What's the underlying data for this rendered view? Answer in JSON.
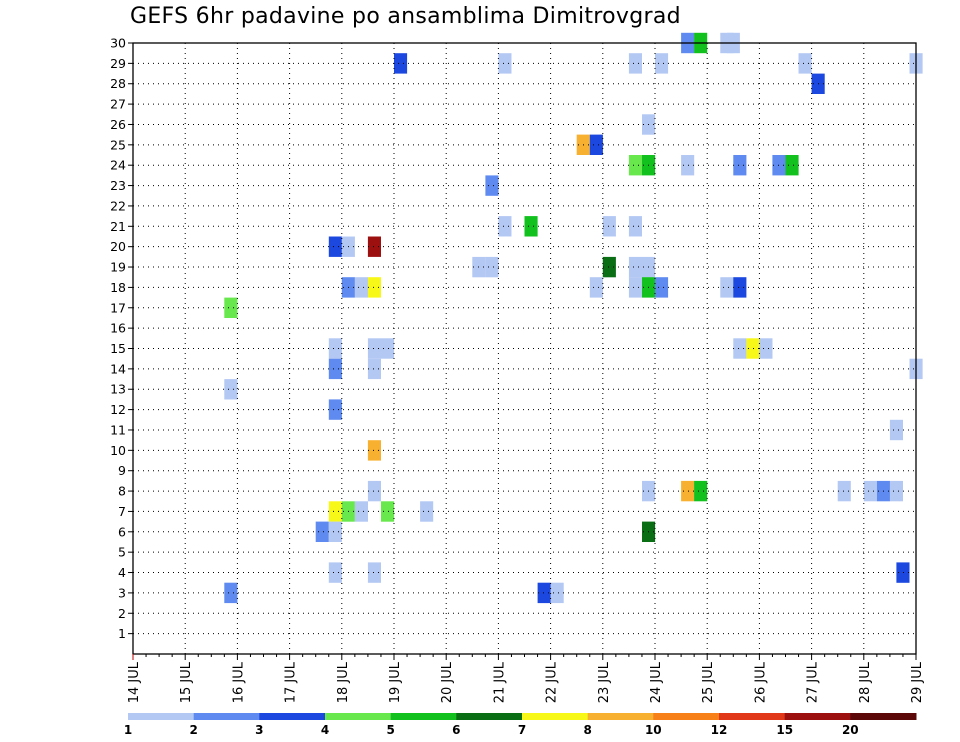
{
  "title": "GEFS 6hr padavine po ansamblima Dimitrovgrad",
  "chart_data": {
    "type": "heatmap",
    "title": "GEFS 6hr padavine po ansamblima Dimitrovgrad",
    "xlabel": "",
    "ylabel": "",
    "x_unit": "days (JUL), 6-hour steps",
    "xlim": [
      14,
      29
    ],
    "ylim": [
      0,
      30
    ],
    "x_ticks": [
      {
        "v": 14,
        "label": "14 JUL"
      },
      {
        "v": 15,
        "label": "15 JUL"
      },
      {
        "v": 16,
        "label": "16 JUL"
      },
      {
        "v": 17,
        "label": "17 JUL"
      },
      {
        "v": 18,
        "label": "18 JUL"
      },
      {
        "v": 19,
        "label": "19 JUL"
      },
      {
        "v": 20,
        "label": "20 JUL"
      },
      {
        "v": 21,
        "label": "21 JUL"
      },
      {
        "v": 22,
        "label": "22 JUL"
      },
      {
        "v": 23,
        "label": "23 JUL"
      },
      {
        "v": 24,
        "label": "24 JUL"
      },
      {
        "v": 25,
        "label": "25 JUL"
      },
      {
        "v": 26,
        "label": "26 JUL"
      },
      {
        "v": 27,
        "label": "27 JUL"
      },
      {
        "v": 28,
        "label": "28 JUL"
      },
      {
        "v": 29,
        "label": "29 JUL"
      }
    ],
    "y_ticks": [
      1,
      2,
      3,
      4,
      5,
      6,
      7,
      8,
      9,
      10,
      11,
      12,
      13,
      14,
      15,
      16,
      17,
      18,
      19,
      20,
      21,
      22,
      23,
      24,
      25,
      26,
      27,
      28,
      29,
      30
    ],
    "grid": true,
    "colorbar": {
      "labels": [
        "1",
        "2",
        "3",
        "4",
        "5",
        "6",
        "7",
        "8",
        "10",
        "12",
        "15",
        "20"
      ],
      "colors": [
        "#b4c8f4",
        "#5f8af0",
        "#1c48e0",
        "#68e84c",
        "#12c01e",
        "#0a6e14",
        "#f8f818",
        "#f8b030",
        "#f88018",
        "#e03818",
        "#9c1010",
        "#5c0808"
      ]
    },
    "cells": [
      {
        "member": 30,
        "day": 24.625,
        "level": 2
      },
      {
        "member": 30,
        "day": 24.875,
        "level": 5
      },
      {
        "member": 30,
        "day": 25.375,
        "level": 1
      },
      {
        "member": 30,
        "day": 25.5,
        "level": 1
      },
      {
        "member": 29,
        "day": 19.125,
        "level": 3
      },
      {
        "member": 29,
        "day": 21.125,
        "level": 1
      },
      {
        "member": 29,
        "day": 23.625,
        "level": 1
      },
      {
        "member": 29,
        "day": 24.125,
        "level": 1
      },
      {
        "member": 29,
        "day": 26.875,
        "level": 1
      },
      {
        "member": 29,
        "day": 29.0,
        "level": 1
      },
      {
        "member": 28,
        "day": 27.125,
        "level": 3
      },
      {
        "member": 26,
        "day": 23.875,
        "level": 1
      },
      {
        "member": 25,
        "day": 22.625,
        "level": 8
      },
      {
        "member": 25,
        "day": 22.875,
        "level": 3
      },
      {
        "member": 24,
        "day": 23.625,
        "level": 4
      },
      {
        "member": 24,
        "day": 23.875,
        "level": 5
      },
      {
        "member": 24,
        "day": 24.625,
        "level": 1
      },
      {
        "member": 24,
        "day": 25.625,
        "level": 2
      },
      {
        "member": 24,
        "day": 26.375,
        "level": 2
      },
      {
        "member": 24,
        "day": 26.625,
        "level": 5
      },
      {
        "member": 23,
        "day": 20.875,
        "level": 2
      },
      {
        "member": 21,
        "day": 21.125,
        "level": 1
      },
      {
        "member": 21,
        "day": 21.625,
        "level": 5
      },
      {
        "member": 21,
        "day": 23.125,
        "level": 1
      },
      {
        "member": 21,
        "day": 23.625,
        "level": 1
      },
      {
        "member": 20,
        "day": 17.875,
        "level": 3
      },
      {
        "member": 20,
        "day": 18.125,
        "level": 1
      },
      {
        "member": 20,
        "day": 18.625,
        "level": 11
      },
      {
        "member": 19,
        "day": 20.625,
        "level": 1
      },
      {
        "member": 19,
        "day": 20.875,
        "level": 1
      },
      {
        "member": 19,
        "day": 23.125,
        "level": 6
      },
      {
        "member": 19,
        "day": 23.625,
        "level": 1
      },
      {
        "member": 19,
        "day": 23.875,
        "level": 1
      },
      {
        "member": 18,
        "day": 18.125,
        "level": 2
      },
      {
        "member": 18,
        "day": 18.375,
        "level": 1
      },
      {
        "member": 18,
        "day": 18.625,
        "level": 7
      },
      {
        "member": 18,
        "day": 22.875,
        "level": 1
      },
      {
        "member": 18,
        "day": 23.625,
        "level": 1
      },
      {
        "member": 18,
        "day": 23.875,
        "level": 5
      },
      {
        "member": 18,
        "day": 24.125,
        "level": 2
      },
      {
        "member": 18,
        "day": 25.375,
        "level": 1
      },
      {
        "member": 18,
        "day": 25.625,
        "level": 3
      },
      {
        "member": 17,
        "day": 15.875,
        "level": 4
      },
      {
        "member": 15,
        "day": 17.875,
        "level": 1
      },
      {
        "member": 15,
        "day": 18.625,
        "level": 1
      },
      {
        "member": 15,
        "day": 18.875,
        "level": 1
      },
      {
        "member": 15,
        "day": 25.625,
        "level": 1
      },
      {
        "member": 15,
        "day": 25.875,
        "level": 7
      },
      {
        "member": 15,
        "day": 26.125,
        "level": 1
      },
      {
        "member": 14,
        "day": 17.875,
        "level": 2
      },
      {
        "member": 14,
        "day": 18.625,
        "level": 1
      },
      {
        "member": 14,
        "day": 29.0,
        "level": 1
      },
      {
        "member": 13,
        "day": 15.875,
        "level": 1
      },
      {
        "member": 12,
        "day": 17.875,
        "level": 2
      },
      {
        "member": 11,
        "day": 28.625,
        "level": 1
      },
      {
        "member": 10,
        "day": 18.625,
        "level": 8
      },
      {
        "member": 8,
        "day": 18.625,
        "level": 1
      },
      {
        "member": 8,
        "day": 23.875,
        "level": 1
      },
      {
        "member": 8,
        "day": 24.625,
        "level": 8
      },
      {
        "member": 8,
        "day": 24.875,
        "level": 5
      },
      {
        "member": 8,
        "day": 27.625,
        "level": 1
      },
      {
        "member": 8,
        "day": 28.125,
        "level": 1
      },
      {
        "member": 8,
        "day": 28.375,
        "level": 2
      },
      {
        "member": 8,
        "day": 28.625,
        "level": 1
      },
      {
        "member": 7,
        "day": 17.875,
        "level": 7
      },
      {
        "member": 7,
        "day": 18.125,
        "level": 4
      },
      {
        "member": 7,
        "day": 18.375,
        "level": 1
      },
      {
        "member": 7,
        "day": 18.875,
        "level": 4
      },
      {
        "member": 7,
        "day": 19.625,
        "level": 1
      },
      {
        "member": 6,
        "day": 17.625,
        "level": 2
      },
      {
        "member": 6,
        "day": 17.875,
        "level": 1
      },
      {
        "member": 6,
        "day": 23.875,
        "level": 6
      },
      {
        "member": 4,
        "day": 17.875,
        "level": 1
      },
      {
        "member": 4,
        "day": 18.625,
        "level": 1
      },
      {
        "member": 4,
        "day": 28.75,
        "level": 3
      },
      {
        "member": 3,
        "day": 15.875,
        "level": 2
      },
      {
        "member": 3,
        "day": 21.875,
        "level": 3
      },
      {
        "member": 3,
        "day": 22.125,
        "level": 1
      }
    ]
  }
}
